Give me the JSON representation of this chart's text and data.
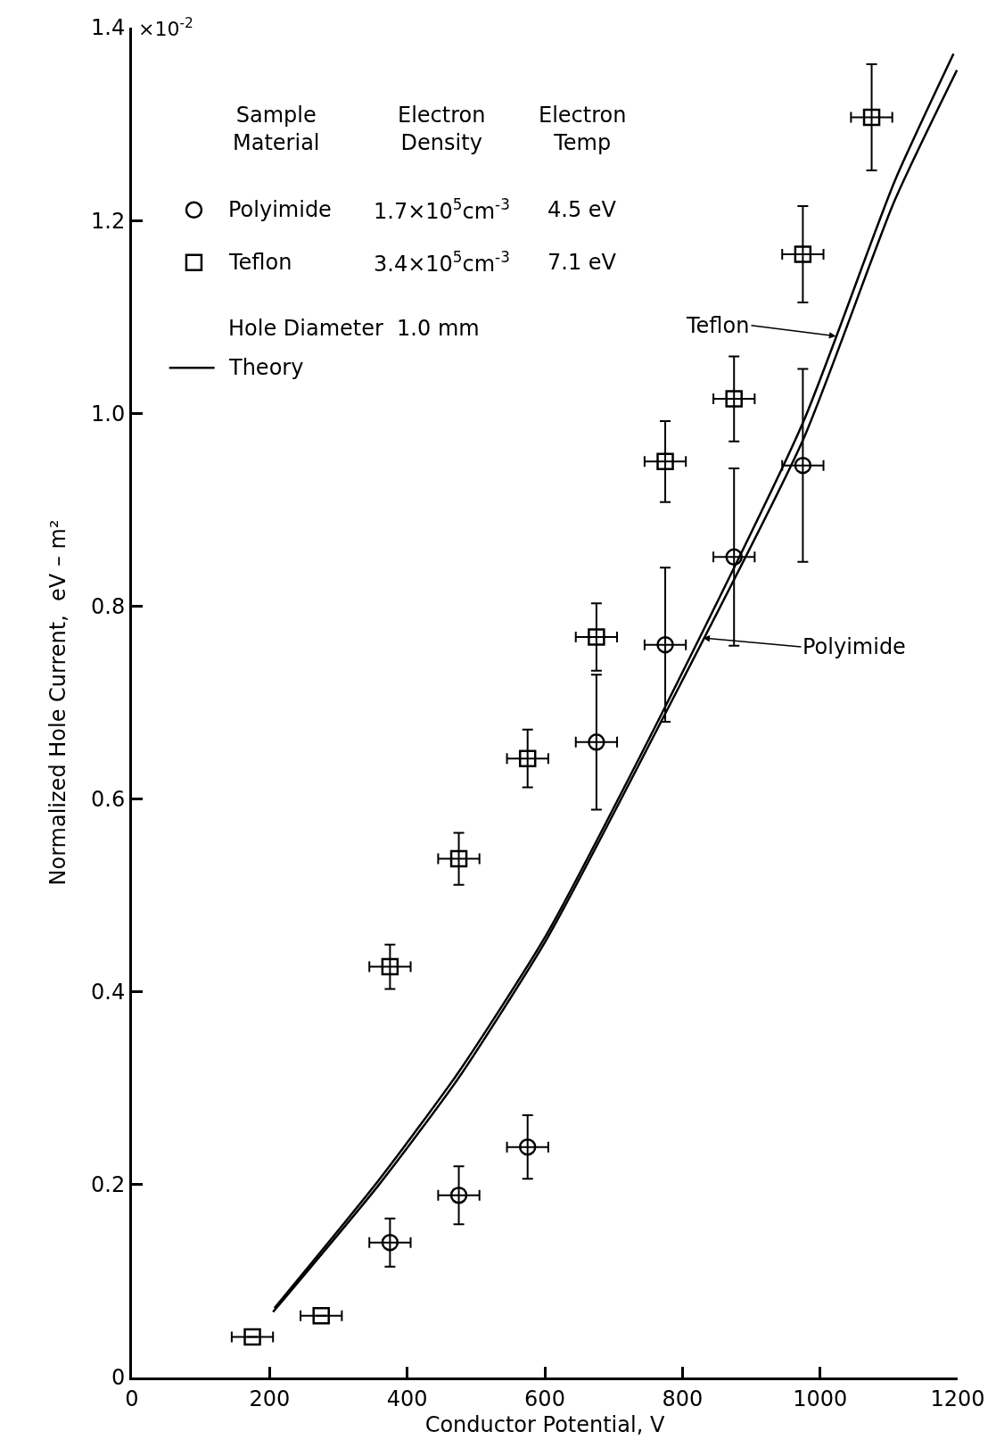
{
  "chart_data": {
    "type": "scatter",
    "xlabel": "Conductor Potential, V",
    "ylabel": "Normalized Hole Current,  eV – m²",
    "xlim": [
      0,
      1200
    ],
    "xticks": [
      0,
      200,
      400,
      600,
      800,
      1000,
      1200
    ],
    "ylim": [
      0,
      1.4
    ],
    "yticks": [
      0,
      0.2,
      0.4,
      0.6,
      0.8,
      {
        "value": 1.0,
        "label": "1.0"
      },
      1.2,
      1.4
    ],
    "legend": "top left",
    "series": [
      {
        "name": "Polyimide",
        "marker": "circle",
        "color": "#000000",
        "x": [
          375,
          475,
          575,
          675,
          775,
          875,
          975
        ],
        "values": [
          0.14,
          0.189,
          0.239,
          0.659,
          0.76,
          0.851,
          0.946
        ],
        "errors": [
          0.025,
          0.03,
          0.033,
          0.07,
          0.08,
          0.092,
          0.1
        ],
        "xerrors": [
          30,
          30,
          30,
          30,
          30,
          30,
          30
        ]
      },
      {
        "name": "Teflon",
        "marker": "square",
        "color": "#000000",
        "x": [
          175,
          275,
          375,
          475,
          575,
          675,
          775,
          875,
          975,
          1075
        ],
        "values": [
          0.042,
          0.064,
          0.426,
          0.538,
          0.642,
          0.768,
          0.95,
          1.015,
          1.165,
          1.307
        ],
        "errors": [
          null,
          null,
          0.023,
          0.027,
          0.03,
          0.035,
          0.042,
          0.044,
          0.05,
          0.055
        ],
        "xerrors": [
          30,
          30,
          30,
          30,
          30,
          30,
          30,
          30,
          30,
          30
        ]
      },
      {
        "type": "line",
        "color": "#000000",
        "line_style": "solid",
        "x": [
          207,
          359,
          474,
          603,
          771,
          975,
          1108,
          1194
        ],
        "values": [
          0.072,
          0.205,
          0.316,
          0.46,
          0.69,
          0.99,
          1.24,
          1.373
        ]
      },
      {
        "type": "line",
        "color": "#000000",
        "line_style": "solid",
        "x": [
          205,
          359,
          474,
          603,
          771,
          975,
          1108,
          1199
        ],
        "values": [
          0.068,
          0.2,
          0.31,
          0.455,
          0.683,
          0.972,
          1.22,
          1.356
        ]
      }
    ],
    "annotations": [
      "×10$^{-2}$",
      "Sample\nMaterial",
      "Electron\nDensity",
      "Electron\nTemp",
      "1.7×10$^{5}$cm$^{-3}$",
      "4.5 eV",
      "3.4×10$^{5}$cm$^{-3}$",
      "7.1 eV",
      "Hole Diameter  1.0 mm",
      "Theory",
      {
        "text": "Teflon",
        "x": 1023,
        "y": 1.08
      },
      {
        "text": "Polyimide",
        "x": 830,
        "y": 0.767
      }
    ]
  }
}
